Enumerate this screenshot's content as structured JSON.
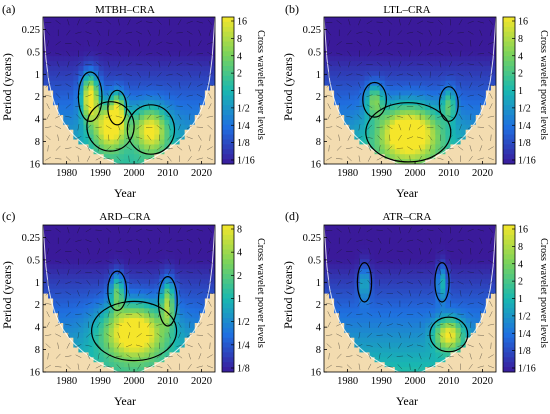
{
  "figure": {
    "colors": {
      "low": "#3a1a9a",
      "mid_low": "#1f6fe0",
      "mid": "#19b8b0",
      "mid_high": "#7dd35a",
      "high": "#f5e62a",
      "coi_shade": "#f3dcb0",
      "axis": "#000000"
    }
  },
  "chart_data": [
    {
      "type": "heatmap",
      "panel_label": "(a)",
      "title": "MTBH–CRA",
      "xlabel": "Year",
      "ylabel": "Period (years)",
      "colorbar_label": "Cross wavelet power levels",
      "xlim": [
        1973,
        2024
      ],
      "ylim_period": [
        0.17,
        16
      ],
      "y_scale": "log2",
      "x_ticks": [
        1980,
        1990,
        2000,
        2010,
        2020
      ],
      "y_ticks": [
        {
          "value": 0.25,
          "label": "0.25"
        },
        {
          "value": 0.5,
          "label": "0.5"
        },
        {
          "value": 1,
          "label": "1"
        },
        {
          "value": 2,
          "label": "2"
        },
        {
          "value": 4,
          "label": "4"
        },
        {
          "value": 8,
          "label": "8"
        },
        {
          "value": 16,
          "label": "16"
        }
      ],
      "colorbar_ticks": [
        "16",
        "8",
        "4",
        "2",
        "1",
        "1/2",
        "1/4",
        "1/8",
        "1/16"
      ],
      "hotspots": [
        {
          "x": 1987,
          "period": 2.0,
          "sx": 2.5,
          "sp": 0.5,
          "power": 4.5
        },
        {
          "x": 1993,
          "period": 5.0,
          "sx": 5.0,
          "sp": 0.5,
          "power": 4.0
        },
        {
          "x": 2005,
          "period": 5.5,
          "sx": 5.0,
          "sp": 0.5,
          "power": 3.5
        },
        {
          "x": 1995,
          "period": 2.8,
          "sx": 2.0,
          "sp": 0.35,
          "power": 2.5
        }
      ]
    },
    {
      "type": "heatmap",
      "panel_label": "(b)",
      "title": "LTL–CRA",
      "xlabel": "Year",
      "ylabel": "Period (years)",
      "colorbar_label": "Cross wavelet power levels",
      "xlim": [
        1973,
        2024
      ],
      "ylim_period": [
        0.17,
        16
      ],
      "y_scale": "log2",
      "x_ticks": [
        1980,
        1990,
        2000,
        2010,
        2020
      ],
      "y_ticks": [
        {
          "value": 0.25,
          "label": "0.25"
        },
        {
          "value": 0.5,
          "label": "0.5"
        },
        {
          "value": 1,
          "label": "1"
        },
        {
          "value": 2,
          "label": "2"
        },
        {
          "value": 4,
          "label": "4"
        },
        {
          "value": 8,
          "label": "8"
        },
        {
          "value": 16,
          "label": "16"
        }
      ],
      "colorbar_ticks": [
        "16",
        "8",
        "4",
        "2",
        "1",
        "1/2",
        "1/4",
        "1/8",
        "1/16"
      ],
      "hotspots": [
        {
          "x": 1998,
          "period": 6.0,
          "sx": 9.0,
          "sp": 0.6,
          "power": 4.5
        },
        {
          "x": 1988,
          "period": 2.2,
          "sx": 2.5,
          "sp": 0.35,
          "power": 2.5
        },
        {
          "x": 2010,
          "period": 2.5,
          "sx": 2.0,
          "sp": 0.35,
          "power": 2.0
        }
      ]
    },
    {
      "type": "heatmap",
      "panel_label": "(c)",
      "title": "ARD–CRA",
      "xlabel": "Year",
      "ylabel": "Period (years)",
      "colorbar_label": "Cross wavelet power levels",
      "xlim": [
        1973,
        2024
      ],
      "ylim_period": [
        0.17,
        16
      ],
      "y_scale": "log2",
      "x_ticks": [
        1980,
        1990,
        2000,
        2010,
        2020
      ],
      "y_ticks": [
        {
          "value": 0.25,
          "label": "0.25"
        },
        {
          "value": 0.5,
          "label": "0.5"
        },
        {
          "value": 1,
          "label": "1"
        },
        {
          "value": 2,
          "label": "2"
        },
        {
          "value": 4,
          "label": "4"
        },
        {
          "value": 8,
          "label": "8"
        },
        {
          "value": 16,
          "label": "16"
        }
      ],
      "colorbar_ticks": [
        "8",
        "4",
        "2",
        "1",
        "1/2",
        "1/4",
        "1/8"
      ],
      "hotspots": [
        {
          "x": 2000,
          "period": 4.5,
          "sx": 9.0,
          "sp": 0.6,
          "power": 4.5
        },
        {
          "x": 1995,
          "period": 1.3,
          "sx": 2.0,
          "sp": 0.4,
          "power": 2.5
        },
        {
          "x": 2010,
          "period": 1.8,
          "sx": 2.0,
          "sp": 0.5,
          "power": 3.0
        }
      ]
    },
    {
      "type": "heatmap",
      "panel_label": "(d)",
      "title": "ATR–CRA",
      "xlabel": "Year",
      "ylabel": "Period (years)",
      "colorbar_label": "Cross wavelet power levels",
      "xlim": [
        1973,
        2024
      ],
      "ylim_period": [
        0.17,
        16
      ],
      "y_scale": "log2",
      "x_ticks": [
        1980,
        1990,
        2000,
        2010,
        2020
      ],
      "y_ticks": [
        {
          "value": 0.25,
          "label": "0.25"
        },
        {
          "value": 0.5,
          "label": "0.5"
        },
        {
          "value": 1,
          "label": "1"
        },
        {
          "value": 2,
          "label": "2"
        },
        {
          "value": 4,
          "label": "4"
        },
        {
          "value": 8,
          "label": "8"
        },
        {
          "value": 16,
          "label": "16"
        }
      ],
      "colorbar_ticks": [
        "16",
        "8",
        "4",
        "2",
        "1",
        "1/2",
        "1/4",
        "1/8",
        "1/16"
      ],
      "hotspots": [
        {
          "x": 2010,
          "period": 5.0,
          "sx": 4.0,
          "sp": 0.35,
          "power": 3.5
        },
        {
          "x": 1985,
          "period": 1.0,
          "sx": 1.5,
          "sp": 0.4,
          "power": 2.0
        },
        {
          "x": 2008,
          "period": 1.0,
          "sx": 1.5,
          "sp": 0.4,
          "power": 2.0
        }
      ]
    }
  ]
}
